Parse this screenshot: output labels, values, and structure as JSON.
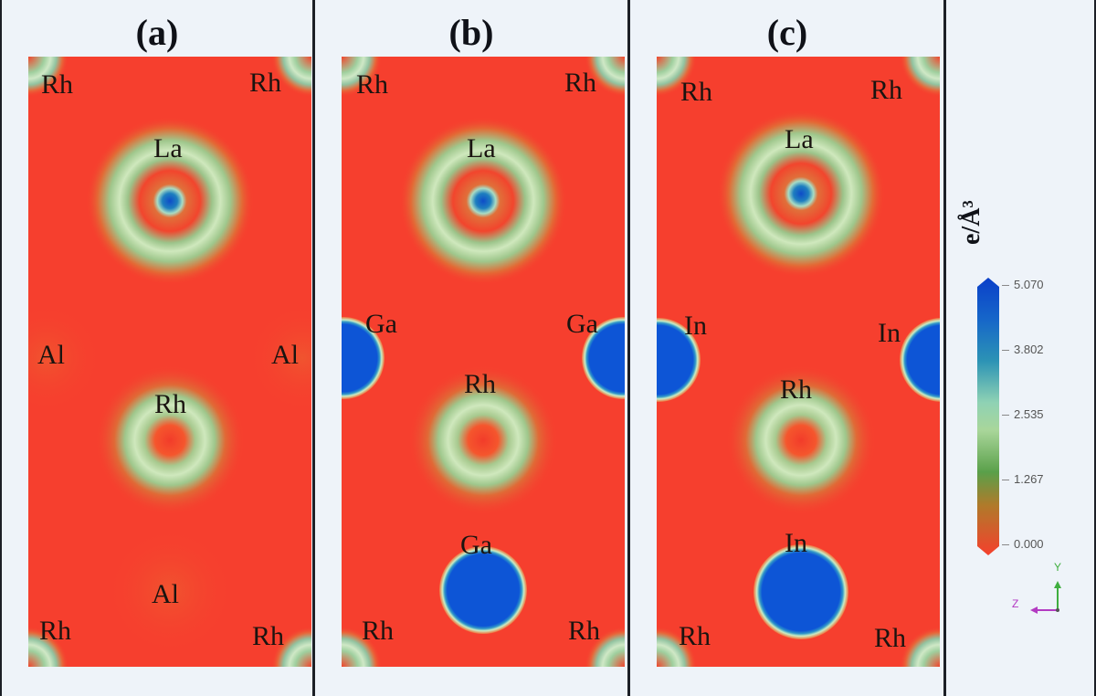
{
  "panels": [
    {
      "label": "(a)",
      "atoms": {
        "corner": "Rh",
        "top": "La",
        "side_left": "Al",
        "side_right": "Al",
        "center": "Rh",
        "bottom": "Al"
      }
    },
    {
      "label": "(b)",
      "atoms": {
        "corner": "Rh",
        "top": "La",
        "side_left": "Ga",
        "side_right": "Ga",
        "center": "Rh",
        "bottom": "Ga"
      }
    },
    {
      "label": "(c)",
      "atoms": {
        "corner": "Rh",
        "top": "La",
        "side_left": "In",
        "side_right": "In",
        "center": "Rh",
        "bottom": "In"
      }
    }
  ],
  "colorbar": {
    "unit": "e/Å³",
    "ticks": [
      "5.070",
      "3.802",
      "2.535",
      "1.267",
      "0.000"
    ],
    "colors": {
      "low": "#f63f2e",
      "mid": "#bfe3b0",
      "high": "#0d55d6"
    }
  },
  "axes": {
    "z_label": "Z",
    "y_label": "Y"
  }
}
